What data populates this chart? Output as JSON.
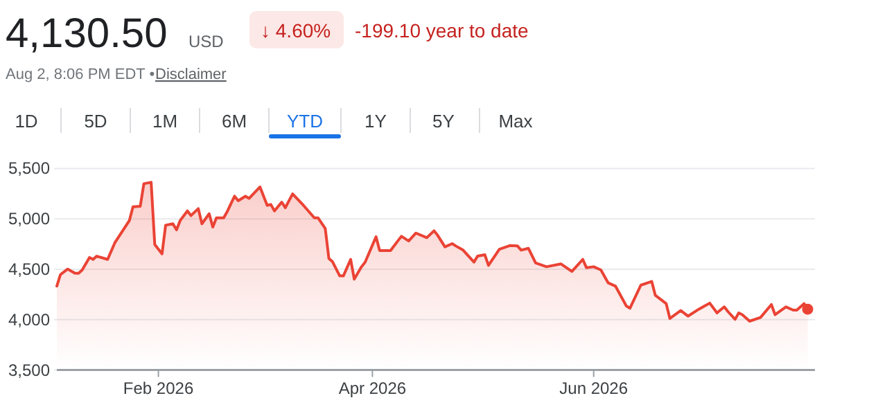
{
  "chart_data": {
    "type": "area",
    "title": "4,130.50",
    "annotations": [
      "USD",
      "↓ 4.60%",
      "-199.10 year to date",
      "Aug 2, 8:06 PM EDT •",
      "Disclaimer",
      "1D",
      "5D",
      "1M",
      "6M",
      "YTD",
      "1Y",
      "5Y",
      "Max"
    ],
    "x": [
      "2026-01-04",
      "2026-01-05",
      "2026-01-07",
      "2026-01-09",
      "2026-01-10",
      "2026-01-11",
      "2026-01-13",
      "2026-01-14",
      "2026-01-15",
      "2026-01-18",
      "2026-01-20",
      "2026-01-22",
      "2026-01-24",
      "2026-01-25",
      "2026-01-27",
      "2026-01-28",
      "2026-01-30",
      "2026-01-31",
      "2026-02-02",
      "2026-02-03",
      "2026-02-05",
      "2026-02-06",
      "2026-02-07",
      "2026-02-09",
      "2026-02-10",
      "2026-02-12",
      "2026-02-13",
      "2026-02-15",
      "2026-02-16",
      "2026-02-17",
      "2026-02-19",
      "2026-02-20",
      "2026-02-22",
      "2026-02-23",
      "2026-02-25",
      "2026-02-26",
      "2026-03-01",
      "2026-03-03",
      "2026-03-04",
      "2026-03-05",
      "2026-03-07",
      "2026-03-08",
      "2026-03-10",
      "2026-03-13",
      "2026-03-16",
      "2026-03-17",
      "2026-03-19",
      "2026-03-20",
      "2026-03-21",
      "2026-03-23",
      "2026-03-24",
      "2026-03-26",
      "2026-03-27",
      "2026-03-29",
      "2026-03-30",
      "2026-04-02",
      "2026-04-03",
      "2026-04-06",
      "2026-04-08",
      "2026-04-09",
      "2026-04-11",
      "2026-04-13",
      "2026-04-16",
      "2026-04-18",
      "2026-04-19",
      "2026-04-21",
      "2026-04-23",
      "2026-04-24",
      "2026-04-26",
      "2026-04-29",
      "2026-04-30",
      "2026-05-02",
      "2026-05-03",
      "2026-05-06",
      "2026-05-09",
      "2026-05-11",
      "2026-05-12",
      "2026-05-14",
      "2026-05-16",
      "2026-05-19",
      "2026-05-23",
      "2026-05-26",
      "2026-05-29",
      "2026-05-30",
      "2026-06-01",
      "2026-06-03",
      "2026-06-05",
      "2026-06-07",
      "2026-06-10",
      "2026-06-11",
      "2026-06-14",
      "2026-06-17",
      "2026-06-18",
      "2026-06-21",
      "2026-06-22",
      "2026-06-25",
      "2026-06-27",
      "2026-06-30",
      "2026-07-03",
      "2026-07-05",
      "2026-07-07",
      "2026-07-08",
      "2026-07-10",
      "2026-07-11",
      "2026-07-12",
      "2026-07-14",
      "2026-07-17",
      "2026-07-20",
      "2026-07-21",
      "2026-07-24",
      "2026-07-26",
      "2026-07-27",
      "2026-07-29",
      "2026-07-30"
    ],
    "series": [
      {
        "color": "#ea4335",
        "values": [
          4333,
          4447,
          4502,
          4461,
          4461,
          4493,
          4617,
          4598,
          4630,
          4598,
          4763,
          4873,
          4983,
          5120,
          5125,
          5349,
          5363,
          4745,
          4653,
          4937,
          4951,
          4891,
          4983,
          5079,
          5033,
          5102,
          4951,
          5051,
          4919,
          5010,
          5010,
          5074,
          5225,
          5180,
          5225,
          5203,
          5317,
          5134,
          5143,
          5079,
          5166,
          5111,
          5248,
          5134,
          5010,
          5010,
          4905,
          4607,
          4575,
          4434,
          4434,
          4598,
          4402,
          4525,
          4571,
          4823,
          4685,
          4685,
          4781,
          4827,
          4781,
          4859,
          4813,
          4882,
          4836,
          4722,
          4754,
          4731,
          4690,
          4571,
          4630,
          4644,
          4539,
          4699,
          4736,
          4731,
          4690,
          4708,
          4562,
          4525,
          4553,
          4479,
          4598,
          4516,
          4525,
          4493,
          4365,
          4333,
          4136,
          4113,
          4342,
          4379,
          4241,
          4159,
          4012,
          4090,
          4035,
          4104,
          4164,
          4067,
          4127,
          4081,
          4003,
          4067,
          4049,
          3985,
          4022,
          4150,
          4049,
          4127,
          4095,
          4095,
          4159,
          4104
        ]
      },
      {
        "type": "scatter",
        "marker": "circle",
        "color": "#ea4335",
        "x": [
          "2026-07-30"
        ],
        "values": [
          4104
        ]
      }
    ],
    "xlim": [
      "2026-01-04",
      "2026-08-01"
    ],
    "xticks": [
      {
        "value": "2026-02-01",
        "label": "Feb 2026"
      },
      {
        "value": "2026-04-01",
        "label": "Apr 2026"
      },
      {
        "value": "2026-06-01",
        "label": "Jun 2026"
      }
    ],
    "ylim": [
      3500,
      5500
    ],
    "yticks": [
      {
        "value": 3500,
        "label": "3,500"
      },
      {
        "value": 4000,
        "label": "4,000"
      },
      {
        "value": 4500,
        "label": "4,500"
      },
      {
        "value": 5000,
        "label": "5,000"
      },
      {
        "value": 5500,
        "label": "5,500"
      }
    ],
    "grid": "y",
    "line_style": "solid"
  }
}
